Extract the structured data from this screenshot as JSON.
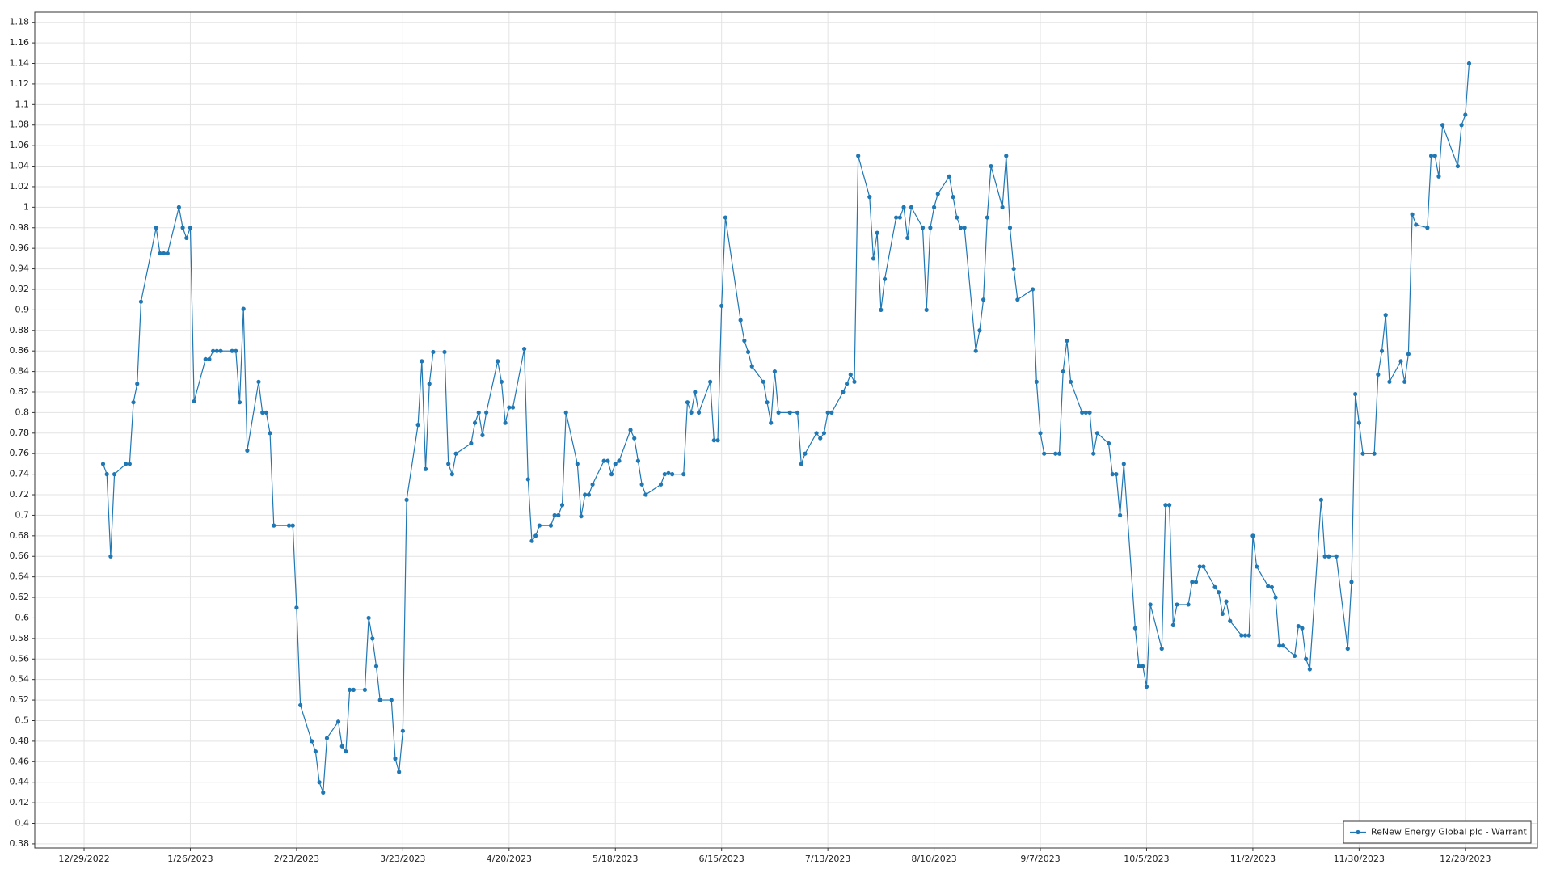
{
  "chart_data": {
    "type": "line",
    "grid": true,
    "legend": "lower right",
    "xlim": [
      "12/16/2022",
      "1/16/2024"
    ],
    "xticks": [
      "12/29/2022",
      "1/26/2023",
      "2/23/2023",
      "3/23/2023",
      "4/20/2023",
      "5/18/2023",
      "6/15/2023",
      "7/13/2023",
      "8/10/2023",
      "9/7/2023",
      "10/5/2023",
      "11/2/2023",
      "11/30/2023",
      "12/28/2023"
    ],
    "ylim": [
      0.376,
      1.19
    ],
    "yticks": [
      0.38,
      0.4,
      0.42,
      0.44,
      0.46,
      0.48,
      0.5,
      0.52,
      0.54,
      0.56,
      0.58,
      0.6,
      0.62,
      0.64,
      0.66,
      0.68,
      0.7,
      0.72,
      0.74,
      0.76,
      0.78,
      0.8,
      0.82,
      0.84,
      0.86,
      0.88,
      0.9,
      0.92,
      0.94,
      0.96,
      0.98,
      1,
      1.02,
      1.04,
      1.06,
      1.08,
      1.1,
      1.12,
      1.14,
      1.16,
      1.18
    ],
    "x": [
      "1/3/2023",
      "1/4/2023",
      "1/5/2023",
      "1/6/2023",
      "1/9/2023",
      "1/10/2023",
      "1/11/2023",
      "1/12/2023",
      "1/13/2023",
      "1/17/2023",
      "1/18/2023",
      "1/19/2023",
      "1/20/2023",
      "1/23/2023",
      "1/24/2023",
      "1/25/2023",
      "1/26/2023",
      "1/27/2023",
      "1/30/2023",
      "1/31/2023",
      "2/1/2023",
      "2/2/2023",
      "2/3/2023",
      "2/6/2023",
      "2/7/2023",
      "2/8/2023",
      "2/9/2023",
      "2/10/2023",
      "2/13/2023",
      "2/14/2023",
      "2/15/2023",
      "2/16/2023",
      "2/17/2023",
      "2/21/2023",
      "2/22/2023",
      "2/23/2023",
      "2/24/2023",
      "2/27/2023",
      "2/28/2023",
      "3/1/2023",
      "3/2/2023",
      "3/3/2023",
      "3/6/2023",
      "3/7/2023",
      "3/8/2023",
      "3/9/2023",
      "3/10/2023",
      "3/13/2023",
      "3/14/2023",
      "3/15/2023",
      "3/16/2023",
      "3/17/2023",
      "3/20/2023",
      "3/21/2023",
      "3/22/2023",
      "3/23/2023",
      "3/24/2023",
      "3/27/2023",
      "3/28/2023",
      "3/29/2023",
      "3/30/2023",
      "3/31/2023",
      "4/3/2023",
      "4/4/2023",
      "4/5/2023",
      "4/6/2023",
      "4/10/2023",
      "4/11/2023",
      "4/12/2023",
      "4/13/2023",
      "4/14/2023",
      "4/17/2023",
      "4/18/2023",
      "4/19/2023",
      "4/20/2023",
      "4/21/2023",
      "4/24/2023",
      "4/25/2023",
      "4/26/2023",
      "4/27/2023",
      "4/28/2023",
      "5/1/2023",
      "5/2/2023",
      "5/3/2023",
      "5/4/2023",
      "5/5/2023",
      "5/8/2023",
      "5/9/2023",
      "5/10/2023",
      "5/11/2023",
      "5/12/2023",
      "5/15/2023",
      "5/16/2023",
      "5/17/2023",
      "5/18/2023",
      "5/19/2023",
      "5/22/2023",
      "5/23/2023",
      "5/24/2023",
      "5/25/2023",
      "5/26/2023",
      "5/30/2023",
      "5/31/2023",
      "6/1/2023",
      "6/2/2023",
      "6/5/2023",
      "6/6/2023",
      "6/7/2023",
      "6/8/2023",
      "6/9/2023",
      "6/12/2023",
      "6/13/2023",
      "6/14/2023",
      "6/15/2023",
      "6/16/2023",
      "6/20/2023",
      "6/21/2023",
      "6/22/2023",
      "6/23/2023",
      "6/26/2023",
      "6/27/2023",
      "6/28/2023",
      "6/29/2023",
      "6/30/2023",
      "7/3/2023",
      "7/5/2023",
      "7/6/2023",
      "7/7/2023",
      "7/10/2023",
      "7/11/2023",
      "7/12/2023",
      "7/13/2023",
      "7/14/2023",
      "7/17/2023",
      "7/18/2023",
      "7/19/2023",
      "7/20/2023",
      "7/21/2023",
      "7/24/2023",
      "7/25/2023",
      "7/26/2023",
      "7/27/2023",
      "7/28/2023",
      "7/31/2023",
      "8/1/2023",
      "8/2/2023",
      "8/3/2023",
      "8/4/2023",
      "8/7/2023",
      "8/8/2023",
      "8/9/2023",
      "8/10/2023",
      "8/11/2023",
      "8/14/2023",
      "8/15/2023",
      "8/16/2023",
      "8/17/2023",
      "8/18/2023",
      "8/21/2023",
      "8/22/2023",
      "8/23/2023",
      "8/24/2023",
      "8/25/2023",
      "8/28/2023",
      "8/29/2023",
      "8/30/2023",
      "8/31/2023",
      "9/1/2023",
      "9/5/2023",
      "9/6/2023",
      "9/7/2023",
      "9/8/2023",
      "9/11/2023",
      "9/12/2023",
      "9/13/2023",
      "9/14/2023",
      "9/15/2023",
      "9/18/2023",
      "9/19/2023",
      "9/20/2023",
      "9/21/2023",
      "9/22/2023",
      "9/25/2023",
      "9/26/2023",
      "9/27/2023",
      "9/28/2023",
      "9/29/2023",
      "10/2/2023",
      "10/3/2023",
      "10/4/2023",
      "10/5/2023",
      "10/6/2023",
      "10/9/2023",
      "10/10/2023",
      "10/11/2023",
      "10/12/2023",
      "10/13/2023",
      "10/16/2023",
      "10/17/2023",
      "10/18/2023",
      "10/19/2023",
      "10/20/2023",
      "10/23/2023",
      "10/24/2023",
      "10/25/2023",
      "10/26/2023",
      "10/27/2023",
      "10/30/2023",
      "10/31/2023",
      "11/1/2023",
      "11/2/2023",
      "11/3/2023",
      "11/6/2023",
      "11/7/2023",
      "11/8/2023",
      "11/9/2023",
      "11/10/2023",
      "11/13/2023",
      "11/14/2023",
      "11/15/2023",
      "11/16/2023",
      "11/17/2023",
      "11/20/2023",
      "11/21/2023",
      "11/22/2023",
      "11/24/2023",
      "11/27/2023",
      "11/28/2023",
      "11/29/2023",
      "11/30/2023",
      "12/1/2023",
      "12/4/2023",
      "12/5/2023",
      "12/6/2023",
      "12/7/2023",
      "12/8/2023",
      "12/11/2023",
      "12/12/2023",
      "12/13/2023",
      "12/14/2023",
      "12/15/2023",
      "12/18/2023",
      "12/19/2023",
      "12/20/2023",
      "12/21/2023",
      "12/22/2023",
      "12/26/2023",
      "12/27/2023",
      "12/28/2023",
      "12/29/2023"
    ],
    "series": [
      {
        "name": "ReNew Energy Global plc - Warrant",
        "color": "#1f77b4",
        "values": [
          0.75,
          0.74,
          0.66,
          0.74,
          0.75,
          0.75,
          0.81,
          0.828,
          0.908,
          0.98,
          0.955,
          0.955,
          0.955,
          1.0,
          0.98,
          0.97,
          0.98,
          0.811,
          0.852,
          0.852,
          0.86,
          0.86,
          0.86,
          0.86,
          0.86,
          0.81,
          0.901,
          0.763,
          0.83,
          0.8,
          0.8,
          0.78,
          0.69,
          0.69,
          0.69,
          0.61,
          0.515,
          0.48,
          0.47,
          0.44,
          0.43,
          0.483,
          0.499,
          0.475,
          0.47,
          0.53,
          0.53,
          0.53,
          0.6,
          0.58,
          0.553,
          0.52,
          0.52,
          0.463,
          0.45,
          0.49,
          0.715,
          0.788,
          0.85,
          0.745,
          0.828,
          0.859,
          0.859,
          0.75,
          0.74,
          0.76,
          0.77,
          0.79,
          0.8,
          0.778,
          0.8,
          0.85,
          0.83,
          0.79,
          0.805,
          0.805,
          0.862,
          0.735,
          0.675,
          0.68,
          0.69,
          0.69,
          0.7,
          0.7,
          0.71,
          0.8,
          0.75,
          0.699,
          0.72,
          0.72,
          0.73,
          0.753,
          0.753,
          0.74,
          0.75,
          0.753,
          0.783,
          0.775,
          0.753,
          0.73,
          0.72,
          0.73,
          0.74,
          0.741,
          0.74,
          0.74,
          0.81,
          0.8,
          0.82,
          0.8,
          0.83,
          0.773,
          0.773,
          0.904,
          0.99,
          0.89,
          0.87,
          0.859,
          0.845,
          0.83,
          0.81,
          0.79,
          0.84,
          0.8,
          0.8,
          0.8,
          0.75,
          0.76,
          0.78,
          0.775,
          0.78,
          0.8,
          0.8,
          0.82,
          0.828,
          0.837,
          0.83,
          1.05,
          1.01,
          0.95,
          0.975,
          0.9,
          0.93,
          0.99,
          0.99,
          1.0,
          0.97,
          1.0,
          0.98,
          0.9,
          0.98,
          1.0,
          1.013,
          1.03,
          1.01,
          0.99,
          0.98,
          0.98,
          0.86,
          0.88,
          0.91,
          0.99,
          1.04,
          1.0,
          1.05,
          0.98,
          0.94,
          0.91,
          0.92,
          0.83,
          0.78,
          0.76,
          0.76,
          0.76,
          0.84,
          0.87,
          0.83,
          0.8,
          0.8,
          0.8,
          0.76,
          0.78,
          0.77,
          0.74,
          0.74,
          0.7,
          0.75,
          0.59,
          0.553,
          0.553,
          0.533,
          0.613,
          0.57,
          0.71,
          0.71,
          0.593,
          0.613,
          0.613,
          0.635,
          0.635,
          0.65,
          0.65,
          0.63,
          0.625,
          0.604,
          0.616,
          0.597,
          0.583,
          0.583,
          0.583,
          0.68,
          0.65,
          0.631,
          0.63,
          0.62,
          0.573,
          0.573,
          0.563,
          0.592,
          0.59,
          0.56,
          0.55,
          0.715,
          0.66,
          0.66,
          0.66,
          0.57,
          0.635,
          0.818,
          0.79,
          0.76,
          0.76,
          0.837,
          0.86,
          0.895,
          0.83,
          0.85,
          0.83,
          0.857,
          0.993,
          0.983,
          0.98,
          1.05,
          1.05,
          1.03,
          1.08,
          1.04,
          1.08,
          1.09,
          1.14
        ]
      }
    ]
  }
}
